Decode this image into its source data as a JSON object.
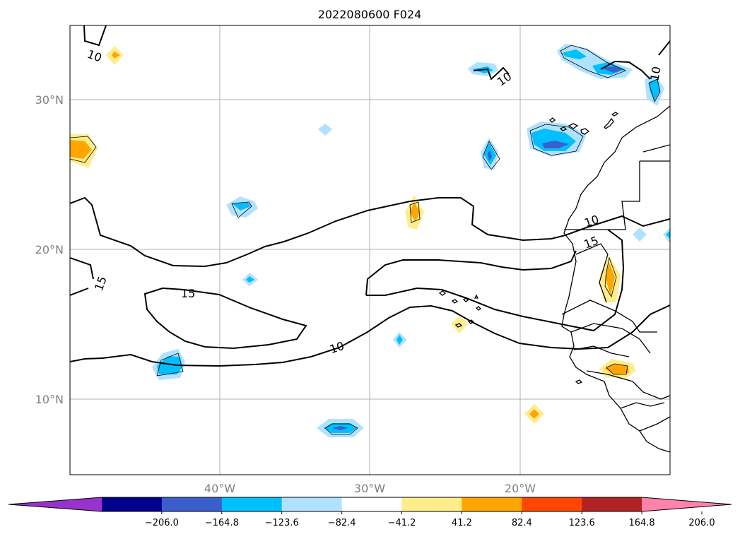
{
  "title": "2022080600 F024",
  "map": {
    "lon_range": [
      -50,
      -10
    ],
    "lat_range": [
      5,
      35
    ],
    "lat_ticks": [
      "30°N",
      "20°N",
      "10°N"
    ],
    "lon_ticks": [
      "40°W",
      "30°W",
      "20°W"
    ],
    "contour_labels": [
      "10",
      "10",
      "10",
      "10",
      "15",
      "15",
      "15"
    ]
  },
  "colorbar": {
    "levels": [
      "−206.0",
      "−164.8",
      "−123.6",
      "−82.4",
      "−41.2",
      "41.2",
      "82.4",
      "123.6",
      "164.8",
      "206.0"
    ],
    "colors": [
      "#9932cc",
      "#00008b",
      "#3a5fcd",
      "#00bfff",
      "#b0e2ff",
      "#ffffff",
      "#ffec8b",
      "#ffa500",
      "#ff4500",
      "#b22222",
      "#ff82ab"
    ]
  }
}
